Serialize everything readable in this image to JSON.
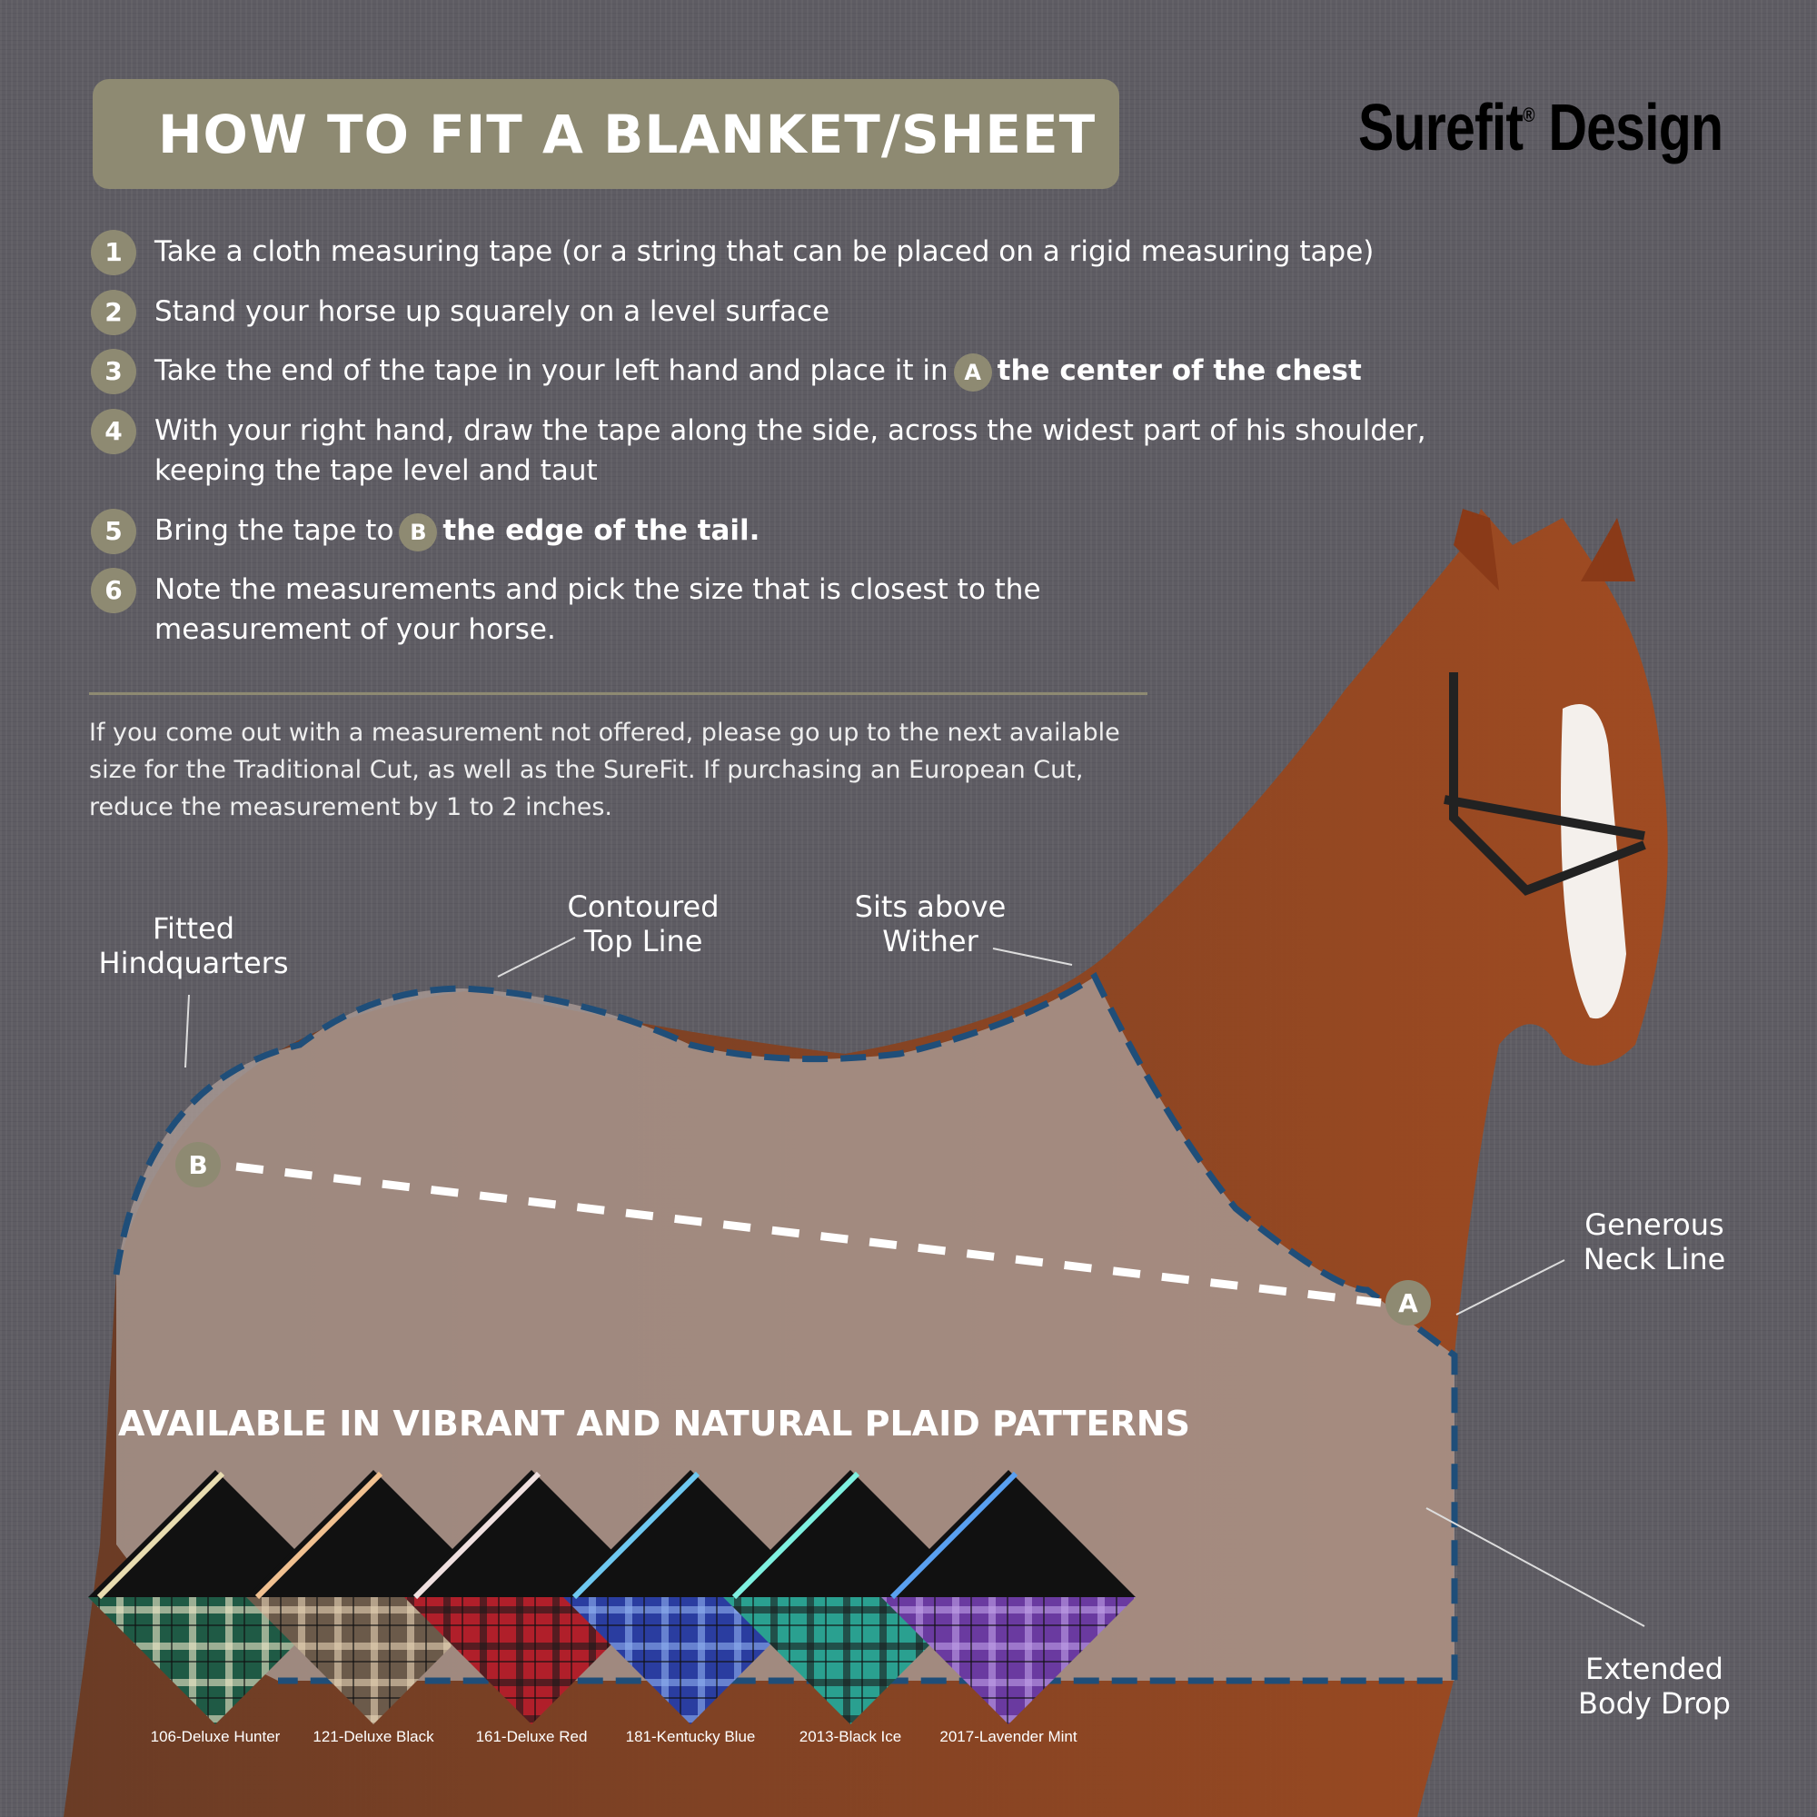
{
  "header": {
    "title": "HOW TO FIT A BLANKET/SHEET",
    "logo_text": "Surefit",
    "logo_reg": "®",
    "logo_text2": "Design"
  },
  "steps": [
    {
      "num": "1",
      "text": "Take a cloth measuring tape (or a string that can be placed on a rigid measuring tape)"
    },
    {
      "num": "2",
      "text": "Stand your horse up squarely on a level surface"
    },
    {
      "num": "3",
      "text": "Take the end of the tape in your left hand and place it in",
      "pin": "A",
      "bold": "the center of the chest"
    },
    {
      "num": "4",
      "text": "With your right hand, draw the tape along the side, across the widest part of his shoulder,",
      "text2": "keeping the tape level and taut"
    },
    {
      "num": "5",
      "text": "Bring the tape to",
      "pin": "B",
      "bold": "the edge of the tail."
    },
    {
      "num": "6",
      "text": "Note the measurements and pick the size that is closest to the",
      "text2": "measurement of your horse."
    }
  ],
  "note": "If you come out with a measurement not offered, please go up to the next available size for the Traditional Cut, as well as the SureFit. If purchasing an European Cut, reduce the measurement by 1 to 2 inches.",
  "callouts": {
    "hind": [
      "Fitted",
      "Hindquarters"
    ],
    "topline": [
      "Contoured",
      "Top Line"
    ],
    "wither": [
      "Sits above",
      "Wither"
    ],
    "neck": [
      "Generous",
      "Neck Line"
    ],
    "drop": [
      "Extended",
      "Body Drop"
    ]
  },
  "markers": {
    "a": "A",
    "b": "B"
  },
  "patterns": {
    "heading": "AVAILABLE IN VIBRANT AND NATURAL PLAID PATTERNS",
    "swatches": [
      {
        "label": "106-Deluxe Hunter",
        "base": "#1f5a45",
        "stripe": "#e8dcb0",
        "check": "#f0e8c8"
      },
      {
        "label": "121-Deluxe Black",
        "base": "#6b5a4a",
        "stripe": "#f0c090",
        "check": "#e6d2b4"
      },
      {
        "label": "161-Deluxe Red",
        "base": "#b01f2a",
        "stripe": "#f0e0e0",
        "check": "#1a1a1a"
      },
      {
        "label": "181-Kentucky Blue",
        "base": "#2a3da0",
        "stripe": "#6ec8f0",
        "check": "#8fb0f0"
      },
      {
        "label": "2013-Black Ice",
        "base": "#2aa090",
        "stripe": "#7ff0e0",
        "check": "#1a1a1a"
      },
      {
        "label": "2017-Lavender Mint",
        "base": "#6a3aa0",
        "stripe": "#5aa0f0",
        "check": "#c0a0e8"
      }
    ]
  },
  "colors": {
    "accent": "#8e8a72",
    "outline": "#1f4e79",
    "background": "#5e5c63"
  }
}
